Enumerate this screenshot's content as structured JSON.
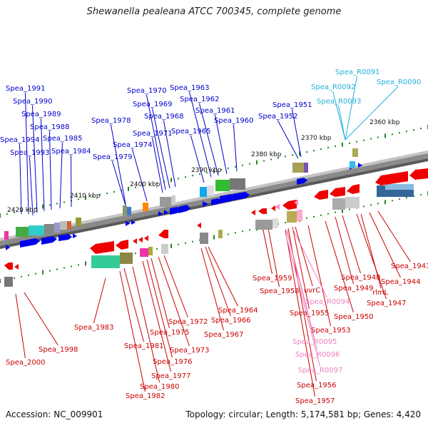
{
  "title": "Shewanella pealeana ATCC 700345, complete genome",
  "footer": {
    "accession": "Accession: NC_009901",
    "summary": "Topology: circular; Length: 5,174,581 bp; Genes: 4,420"
  },
  "colors": {
    "top_label": "#0000cc",
    "top_rna_label": "#22b0d8",
    "bottom_label": "#cc0000",
    "bottom_rna_label": "#f080c0",
    "tick_dot": "#228822",
    "backbone": "#777777"
  },
  "scale_labels": [
    "2360 kbp",
    "2370 kbp",
    "2380 kbp",
    "2390 kbp",
    "2400 kbp",
    "2410 kbp",
    "2420 kbp"
  ],
  "top_labels": [
    "Spea_1991",
    "Spea_1990",
    "Spea_1989",
    "Spea_1988",
    "Spea_1994",
    "Spea_1985",
    "Spea_1993",
    "Spea_1984",
    "Spea_1978",
    "Spea_1979",
    "Spea_1974",
    "Spea_1971",
    "Spea_1970",
    "Spea_1969",
    "Spea_1968",
    "Spea_1965",
    "Spea_1963",
    "Spea_1962",
    "Spea_1961",
    "Spea_1960",
    "Spea_1951",
    "Spea_1952"
  ],
  "top_rna_labels": [
    "Spea_R0091",
    "Spea_R0092",
    "Spea_R0090",
    "Spea_R0093"
  ],
  "bottom_labels": [
    "Spea_1943",
    "Spea_1944",
    "Spea_1947",
    "rlmL",
    "Spea_1948",
    "Spea_1949",
    "Spea_1950",
    "Spea_1953",
    "Spea_1955",
    "uvrC",
    "Spea_1959",
    "Spea_1958",
    "Spea_1956",
    "Spea_1957",
    "Spea_1964",
    "Spea_1966",
    "Spea_1967",
    "Spea_1972",
    "Spea_1973",
    "Spea_1975",
    "Spea_1976",
    "Spea_1977",
    "Spea_1980",
    "Spea_1981",
    "Spea_1982",
    "Spea_1983",
    "Spea_1998",
    "Spea_2000"
  ],
  "bottom_rna_labels": [
    "Spea_R0094",
    "Spea_R0095",
    "Spea_R0096",
    "Spea_R0097"
  ]
}
